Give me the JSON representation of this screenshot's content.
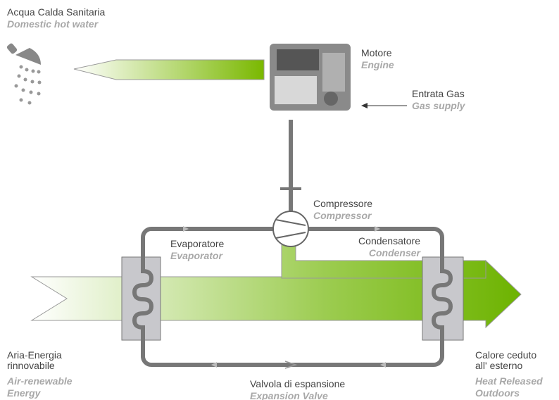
{
  "labels": [
    {
      "lines": [
        "Acqua Calda Sanitaria"
      ],
      "en": [
        "Domestic hot water"
      ]
    },
    {
      "lines": [
        "Motore"
      ],
      "en": [
        "Engine"
      ]
    },
    {
      "lines": [
        "Entrata Gas"
      ],
      "en": [
        "Gas supply"
      ]
    },
    {
      "lines": [
        "Compressore"
      ],
      "en": [
        "Compressor"
      ]
    },
    {
      "lines": [
        "Evaporatore"
      ],
      "en": [
        "Evaporator"
      ]
    },
    {
      "lines": [
        "Condensatore"
      ],
      "en": [
        "Condenser"
      ]
    },
    {
      "lines": [
        "Aria-Energia",
        "rinnovabile"
      ],
      "en": [
        "Air-renewable",
        "Energy"
      ]
    },
    {
      "lines": [
        "Valvola di espansione"
      ],
      "en": [
        "Expansion Valve"
      ]
    },
    {
      "lines": [
        "Calore ceduto",
        "all' esterno"
      ],
      "en": [
        "Heat Released",
        "Outdoors"
      ]
    }
  ]
}
